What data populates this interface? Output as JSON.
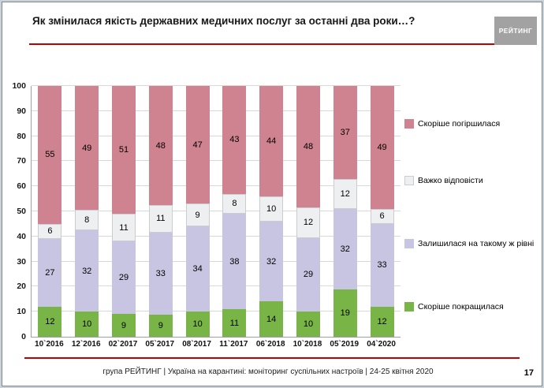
{
  "slide": {
    "title": "Як змінилася якість державних медичних послуг за останні два роки…?",
    "logo": "РЕЙТИНГ",
    "footer": "група РЕЙТИНГ | Україна на карантині: моніторинг суспільних настроїв  | 24-25 квітня 2020",
    "page_number": "17",
    "accent_color": "#c00000"
  },
  "chart_data": {
    "type": "bar",
    "stacked": true,
    "title": "Як змінилася якість державних медичних послуг за останні два роки…?",
    "categories": [
      "10`2016",
      "12`2016",
      "02`2017",
      "05`2017",
      "08`2017",
      "11`2017",
      "06`2018",
      "10`2018",
      "05`2019",
      "04`2020"
    ],
    "series": [
      {
        "name": "Скоріше покращилася",
        "color": "#79b546",
        "values": [
          12,
          10,
          9,
          9,
          10,
          11,
          14,
          10,
          19,
          12
        ]
      },
      {
        "name": "Залишилася на такому ж рівні",
        "color": "#c8c5e2",
        "values": [
          27,
          32,
          29,
          33,
          34,
          38,
          32,
          29,
          32,
          33
        ]
      },
      {
        "name": "Важко відповісти",
        "color": "#edeff1",
        "border_color": "#c9ccd1",
        "values": [
          6,
          8,
          11,
          11,
          9,
          8,
          10,
          12,
          12,
          6
        ]
      },
      {
        "name": "Скоріше погіршилася",
        "color": "#cf8390",
        "values": [
          55,
          49,
          51,
          48,
          47,
          43,
          44,
          48,
          37,
          49
        ]
      }
    ],
    "legend": [
      {
        "label": "Скоріше погіршилася",
        "color": "#cf8390"
      },
      {
        "label": "Важко відповісти",
        "color": "#edeff1",
        "border_color": "#c9ccd1"
      },
      {
        "label": "Залишилася на такому ж рівні",
        "color": "#c8c5e2"
      },
      {
        "label": "Скоріше покращилася",
        "color": "#79b546"
      }
    ],
    "ylim": [
      0,
      100
    ],
    "ytick_step": 10,
    "grid": true,
    "legend_position": "right"
  }
}
